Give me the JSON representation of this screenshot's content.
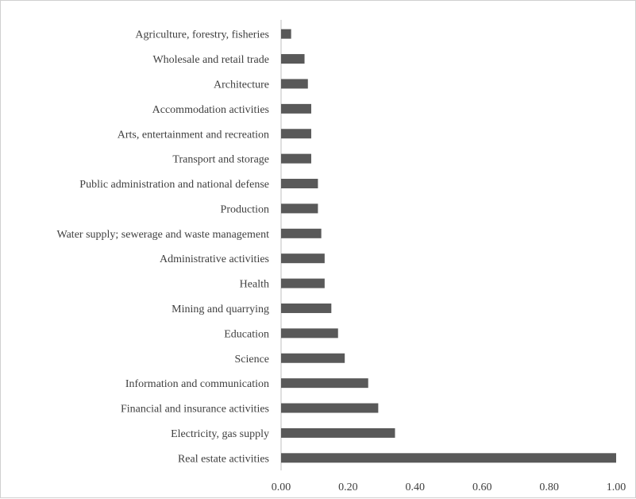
{
  "chart_data": {
    "type": "bar",
    "orientation": "horizontal",
    "categories": [
      "Agriculture, forestry, fisheries",
      "Wholesale and retail trade",
      "Architecture",
      "Accommodation activities",
      "Arts, entertainment and recreation",
      "Transport and storage",
      "Public administration and national defense",
      "Production",
      "Water supply; sewerage and waste management",
      "Administrative activities",
      "Health",
      "Mining and quarrying",
      "Education",
      "Science",
      "Information and communication",
      "Financial and insurance activities",
      "Electricity, gas supply",
      "Real estate activities"
    ],
    "values": [
      0.03,
      0.07,
      0.08,
      0.09,
      0.09,
      0.09,
      0.11,
      0.11,
      0.12,
      0.13,
      0.13,
      0.15,
      0.17,
      0.19,
      0.26,
      0.29,
      0.34,
      1.0
    ],
    "x_ticks": [
      "0.00",
      "0.20",
      "0.40",
      "0.60",
      "0.80",
      "1.00"
    ],
    "xlim": [
      0,
      1.0
    ],
    "title": "",
    "xlabel": "",
    "ylabel": "",
    "legend": false,
    "grid": false,
    "bar_color": "#595959",
    "axis_color": "#bfbfbf"
  }
}
